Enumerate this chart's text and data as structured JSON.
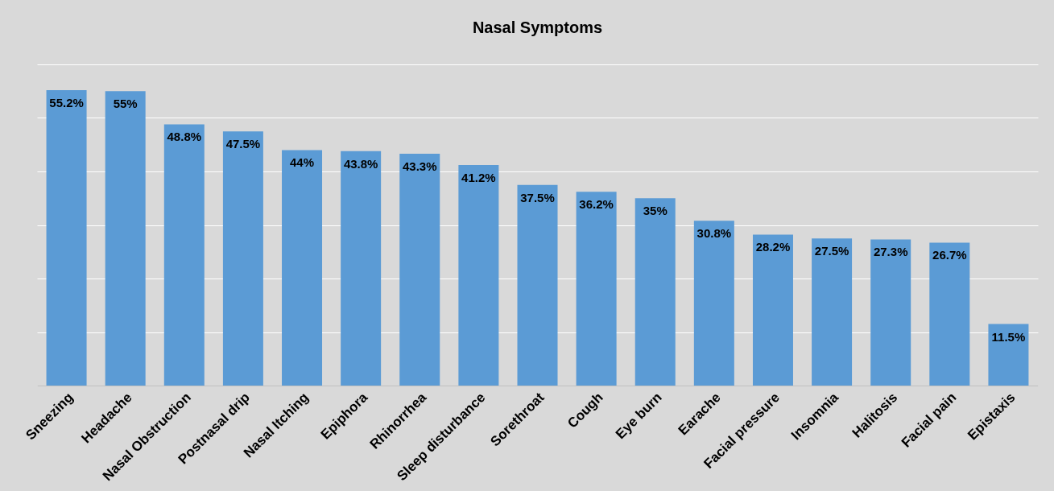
{
  "chart_data": {
    "type": "bar",
    "title": "Nasal Symptoms",
    "categories": [
      "Sneezing",
      "Headache",
      "Nasal Obstruction",
      "Postnasal drip",
      "Nasal Itching",
      "Epiphora",
      "Rhinorrhea",
      "Sleep disturbance",
      "Sorethroat",
      "Cough",
      "Eye burn",
      "Earache",
      "Facial pressure",
      "Insomnia",
      "Halitosis",
      "Facial pain",
      "Epistaxis"
    ],
    "values": [
      55.2,
      55,
      48.8,
      47.5,
      44,
      43.8,
      43.3,
      41.2,
      37.5,
      36.2,
      35,
      30.8,
      28.2,
      27.5,
      27.3,
      26.7,
      11.5
    ],
    "value_labels": [
      "55.2%",
      "55%",
      "48.8%",
      "47.5%",
      "44%",
      "43.8%",
      "43.3%",
      "41.2%",
      "37.5%",
      "36.2%",
      "35%",
      "30.8%",
      "28.2%",
      "27.5%",
      "27.3%",
      "26.7%",
      "11.5%"
    ],
    "color": "#5b9bd5",
    "ylim": [
      0,
      60
    ],
    "yticks": [
      {
        "value": 0,
        "label": null
      },
      {
        "value": 10,
        "label": null
      },
      {
        "value": 20,
        "label": null
      },
      {
        "value": 30,
        "label": null
      },
      {
        "value": 40,
        "label": null
      },
      {
        "value": 50,
        "label": null
      },
      {
        "value": 60,
        "label": null
      }
    ],
    "tick_labels": "x",
    "grid": "y"
  }
}
